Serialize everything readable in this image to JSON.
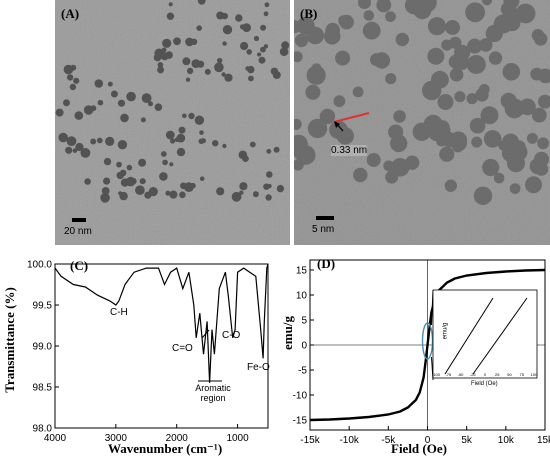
{
  "panels": {
    "A": {
      "label": "(A)",
      "scale_bar": "20 nm"
    },
    "B": {
      "label": "(B)",
      "scale_bar": "5 nm",
      "lattice_spacing": "0.33 nm"
    },
    "C": {
      "label": "(C)",
      "annotations": {
        "ch": "C-H",
        "co_double": "C=O",
        "aromatic": "Aromatic region",
        "co_single": "C-O",
        "feo": "Fe-O"
      }
    },
    "D": {
      "label": "(D)"
    }
  },
  "chart_data": [
    {
      "panel": "C",
      "type": "line",
      "xlabel": "Wavenumber (cm⁻¹)",
      "ylabel": "Transmittance (%)",
      "xlim": [
        4000,
        500
      ],
      "ylim": [
        98.0,
        100.0
      ],
      "x_ticks": [
        "4000",
        "3000",
        "2000",
        "1000"
      ],
      "y_ticks": [
        "98.0",
        "98.5",
        "99.0",
        "99.5",
        "100.0"
      ],
      "x": [
        4000,
        3900,
        3700,
        3500,
        3300,
        3100,
        3000,
        2950,
        2850,
        2700,
        2500,
        2300,
        2200,
        2100,
        2000,
        1900,
        1800,
        1720,
        1680,
        1620,
        1560,
        1500,
        1460,
        1420,
        1380,
        1300,
        1200,
        1150,
        1080,
        1040,
        1000,
        900,
        800,
        700,
        620,
        580,
        560,
        520,
        500
      ],
      "y": [
        99.95,
        99.85,
        99.75,
        99.72,
        99.62,
        99.55,
        99.5,
        99.55,
        99.75,
        99.9,
        99.95,
        99.95,
        99.75,
        99.9,
        99.95,
        99.7,
        99.9,
        99.5,
        99.1,
        99.4,
        98.9,
        99.3,
        98.55,
        99.2,
        98.9,
        99.7,
        99.9,
        99.6,
        99.1,
        99.2,
        99.9,
        99.95,
        99.9,
        99.85,
        99.2,
        98.85,
        99.3,
        99.95,
        100.0
      ]
    },
    {
      "panel": "D",
      "type": "line",
      "xlabel": "Field (Oe)",
      "ylabel": "emu/g",
      "xlim": [
        -15000,
        15000
      ],
      "ylim": [
        -17,
        17
      ],
      "x_ticks": [
        "-15k",
        "-10k",
        "-5k",
        "0",
        "5k",
        "10k",
        "15k"
      ],
      "y_ticks": [
        "-15",
        "-10",
        "-5",
        "0",
        "5",
        "10",
        "15"
      ],
      "x": [
        -15000,
        -12500,
        -10000,
        -7500,
        -5000,
        -3500,
        -2500,
        -1500,
        -1000,
        -500,
        -250,
        0,
        250,
        500,
        1000,
        1500,
        2500,
        3500,
        5000,
        7500,
        10000,
        12500,
        15000
      ],
      "y": [
        -15.0,
        -14.9,
        -14.7,
        -14.4,
        -13.9,
        -13.3,
        -12.5,
        -11.0,
        -9.5,
        -6.5,
        -3.5,
        0,
        3.5,
        6.5,
        9.5,
        11.0,
        12.5,
        13.3,
        13.9,
        14.4,
        14.7,
        14.9,
        15.0
      ],
      "inset": {
        "xlabel": "Field (Oe)",
        "ylabel": "emu/g",
        "x_ticks": [
          "-100",
          "-75",
          "-50",
          "-25",
          "0",
          "25",
          "50",
          "75",
          "100"
        ]
      }
    }
  ]
}
